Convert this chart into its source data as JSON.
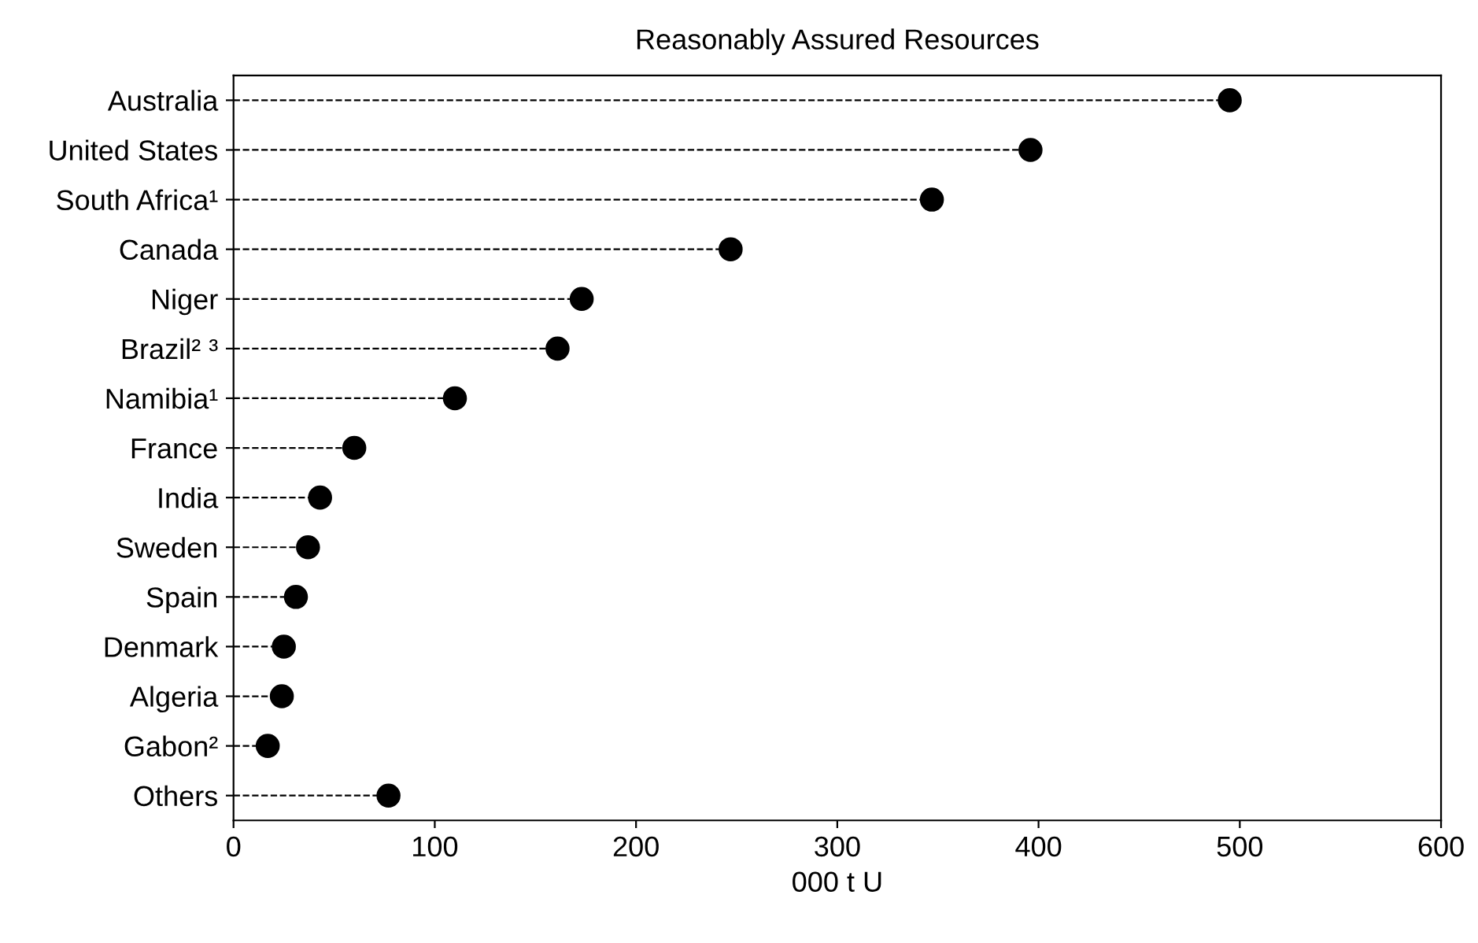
{
  "chart_data": {
    "type": "lollipop",
    "orientation": "horizontal",
    "title": "Reasonably Assured Resources",
    "xlabel": "000 t U",
    "categories": [
      "Australia",
      "United States",
      "South Africa¹",
      "Canada",
      "Niger",
      "Brazil² ³",
      "Namibia¹",
      "France",
      "India",
      "Sweden",
      "Spain",
      "Denmark",
      "Algeria",
      "Gabon²",
      "Others"
    ],
    "values": [
      495,
      396,
      347,
      247,
      173,
      161,
      110,
      60,
      43,
      37,
      31,
      25,
      24,
      17,
      77
    ],
    "color": "#000000",
    "marker": "circle",
    "line_style": "dashed",
    "xlim": [
      0,
      600
    ],
    "xticks": [
      0,
      100,
      200,
      300,
      400,
      500,
      600
    ]
  }
}
